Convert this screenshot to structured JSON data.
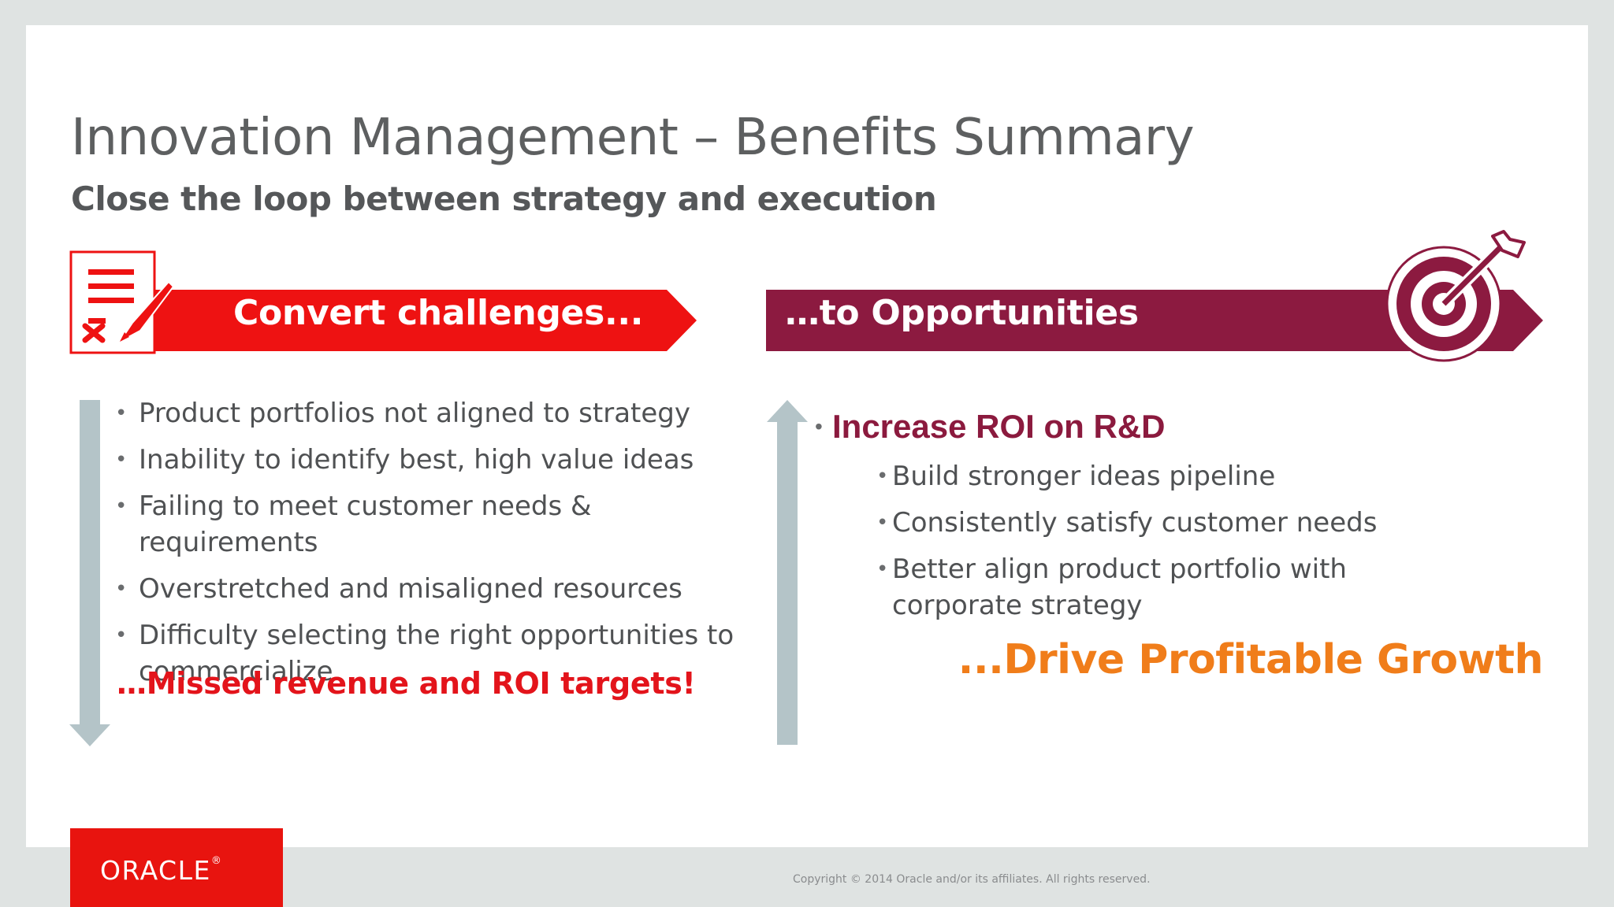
{
  "slide": {
    "title": "Innovation Management – Benefits Summary",
    "subtitle": "Close the loop between strategy and execution"
  },
  "left": {
    "banner_label": "Convert challenges...",
    "banner_color": "#ee1212",
    "icon": "checklist-pen-icon",
    "bullets": [
      "Product portfolios not aligned to strategy",
      "Inability to identify best, high value ideas",
      "Failing to meet customer needs & requirements",
      "Overstretched and misaligned resources",
      "Difficulty selecting the right opportunities to commercialize"
    ],
    "conclusion": "…Missed revenue and ROI targets!",
    "arrow_direction": "down"
  },
  "right": {
    "banner_label": "…to Opportunities",
    "banner_color": "#8c1a40",
    "icon": "target-arrow-icon",
    "headline": "Increase ROI on R&D",
    "bullets": [
      "Build stronger ideas pipeline",
      "Consistently satisfy customer needs",
      "Better align product portfolio with corporate strategy"
    ],
    "conclusion": "...Drive Profitable Growth",
    "arrow_direction": "up"
  },
  "footer": {
    "logo_text": "ORACLE",
    "logo_registered": "®",
    "copyright": "Copyright © 2014 Oracle and/or its affiliates. All rights reserved."
  },
  "colors": {
    "accent_red": "#e3141b",
    "accent_burgundy": "#8b1a3e",
    "accent_orange": "#f07d1a",
    "arrow_gray": "#b4c4c8"
  }
}
